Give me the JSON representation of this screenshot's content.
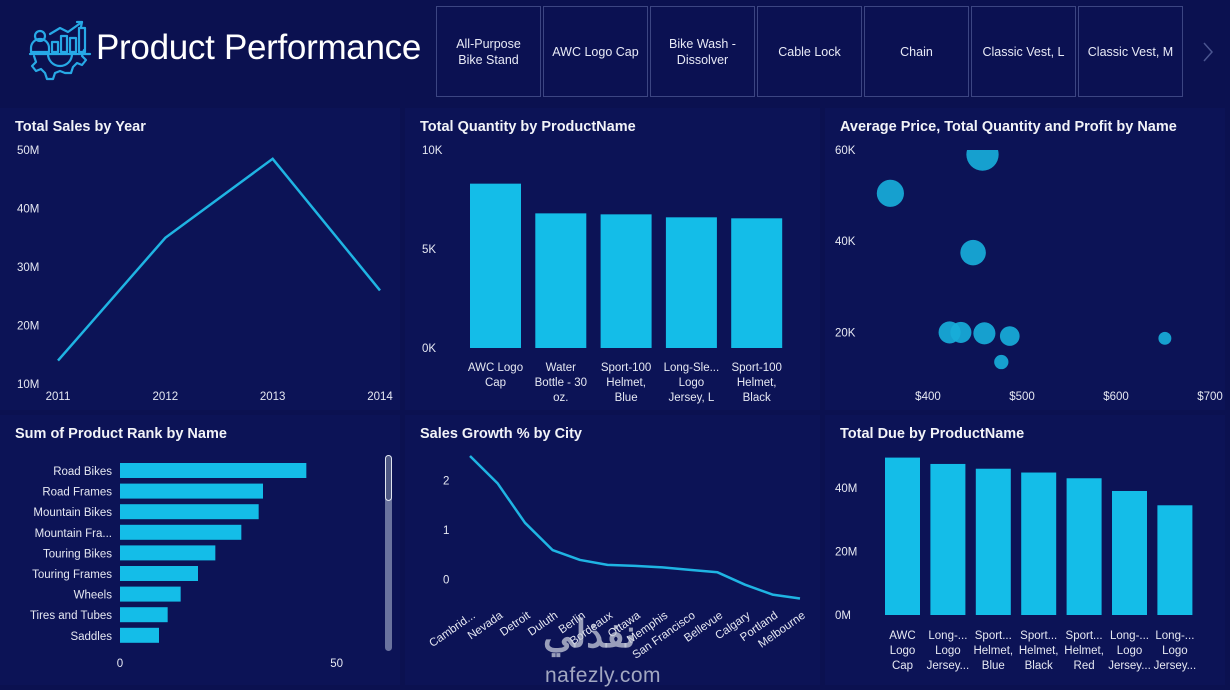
{
  "header": {
    "title": "Product Performance",
    "logo_icon": "analytics-gear-icon",
    "slicer": {
      "items": [
        "All-Purpose Bike Stand",
        "AWC Logo Cap",
        "Bike Wash - Dissolver",
        "Cable Lock",
        "Chain",
        "Classic Vest, L",
        "Classic Vest, M"
      ],
      "next_icon": "chevron-right-icon"
    }
  },
  "colors": {
    "background": "#0b1150",
    "panel": "#0c1356",
    "accent": "#14bde8",
    "line": "#1fb4e3",
    "text": "#ffffff"
  },
  "watermark": {
    "arabic": "نفذلي",
    "latin": "nafezly.com"
  },
  "chart_data": [
    {
      "id": "sales-by-year",
      "type": "line",
      "title": "Total Sales by Year",
      "x": [
        "2011",
        "2012",
        "2013",
        "2014"
      ],
      "values": [
        14,
        35,
        48.5,
        26
      ],
      "unit": "M",
      "yticks": [
        "10M",
        "20M",
        "30M",
        "40M",
        "50M"
      ],
      "ylim": [
        10,
        50
      ],
      "xlabel": "",
      "ylabel": "",
      "grid": false
    },
    {
      "id": "quantity-by-product",
      "type": "bar",
      "title": "Total Quantity by ProductName",
      "categories": [
        [
          "AWC Logo",
          "Cap"
        ],
        [
          "Water",
          "Bottle - 30",
          "oz."
        ],
        [
          "Sport-100",
          "Helmet,",
          "Blue"
        ],
        [
          "Long-Sle...",
          "Logo",
          "Jersey, L"
        ],
        [
          "Sport-100",
          "Helmet,",
          "Black"
        ]
      ],
      "values": [
        8300,
        6800,
        6750,
        6600,
        6550
      ],
      "yticks": [
        "0K",
        "5K",
        "10K"
      ],
      "ylim": [
        0,
        10000
      ],
      "grid": false
    },
    {
      "id": "price-qty-profit",
      "type": "scatter",
      "title": "Average Price, Total Quantity and Profit by Name",
      "points": [
        {
          "x": 458,
          "y": 59000,
          "size": 0.95
        },
        {
          "x": 360,
          "y": 50500,
          "size": 0.8
        },
        {
          "x": 448,
          "y": 37500,
          "size": 0.75
        },
        {
          "x": 423,
          "y": 20000,
          "size": 0.65
        },
        {
          "x": 435,
          "y": 20000,
          "size": 0.62
        },
        {
          "x": 460,
          "y": 19800,
          "size": 0.65
        },
        {
          "x": 487,
          "y": 19200,
          "size": 0.58
        },
        {
          "x": 652,
          "y": 18700,
          "size": 0.38
        },
        {
          "x": 478,
          "y": 13500,
          "size": 0.42
        }
      ],
      "xticks": [
        "$400",
        "$500",
        "$600",
        "$700"
      ],
      "xlim": [
        333,
        700
      ],
      "yticks": [
        "20K",
        "40K",
        "60K"
      ],
      "ylim": [
        10000,
        60000
      ],
      "grid": false
    },
    {
      "id": "rank-by-name",
      "type": "bar",
      "orientation": "horizontal",
      "title": "Sum of Product Rank by Name",
      "categories": [
        "Road Bikes",
        "Road Frames",
        "Mountain Bikes",
        "Mountain Fra...",
        "Touring Bikes",
        "Touring Frames",
        "Wheels",
        "Tires and Tubes",
        "Saddles"
      ],
      "values": [
        43,
        33,
        32,
        28,
        22,
        18,
        14,
        11,
        9
      ],
      "xticks": [
        "0",
        "50"
      ],
      "xlim": [
        0,
        60
      ],
      "grid": false,
      "scrollbar": true
    },
    {
      "id": "growth-by-city",
      "type": "line",
      "title": "Sales Growth % by City",
      "x": [
        "Cambrid...",
        "Nevada",
        "Detroit",
        "Duluth",
        "Berlin",
        "Bordeaux",
        "Ottawa",
        "Memphis",
        "San Francisco",
        "Bellevue",
        "Calgary",
        "Portland",
        "Melbourne"
      ],
      "values": [
        2.5,
        1.95,
        1.15,
        0.6,
        0.4,
        0.3,
        0.28,
        0.25,
        0.2,
        0.15,
        -0.1,
        -0.3,
        -0.38
      ],
      "yticks": [
        "0",
        "1",
        "2"
      ],
      "ylim": [
        -0.45,
        2.5
      ],
      "grid": false
    },
    {
      "id": "due-by-product",
      "type": "bar",
      "title": "Total Due by ProductName",
      "categories": [
        [
          "AWC",
          "Logo",
          "Cap"
        ],
        [
          "Long-...",
          "Logo",
          "Jersey..."
        ],
        [
          "Sport...",
          "Helmet,",
          "Blue"
        ],
        [
          "Sport...",
          "Helmet,",
          "Black"
        ],
        [
          "Sport...",
          "Helmet,",
          "Red"
        ],
        [
          "Long-...",
          "Logo",
          "Jersey..."
        ],
        [
          "Long-...",
          "Logo",
          "Jersey..."
        ]
      ],
      "values": [
        49.5,
        47.5,
        46,
        44.8,
        43,
        39,
        34.5
      ],
      "unit": "M",
      "yticks": [
        "0M",
        "20M",
        "40M"
      ],
      "ylim": [
        0,
        50
      ],
      "grid": false
    }
  ]
}
